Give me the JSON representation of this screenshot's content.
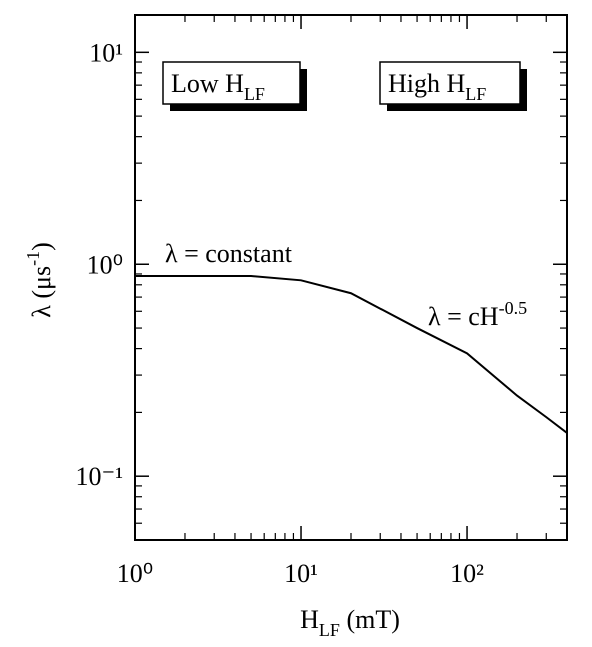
{
  "chart_data": {
    "type": "line",
    "xlabel": {
      "text": "H",
      "sub": "LF",
      "rest": " (mT)"
    },
    "ylabel": {
      "text": "λ (μs",
      "sup": "-1",
      "rest": ")"
    },
    "x": [
      1,
      5,
      10,
      20,
      50,
      100,
      200,
      300,
      400
    ],
    "values": [
      0.88,
      0.88,
      0.84,
      0.73,
      0.5,
      0.38,
      0.24,
      0.19,
      0.16
    ],
    "color": "#000000",
    "xscale": "log",
    "yscale": "log",
    "xlim": [
      1,
      400
    ],
    "ylim": [
      0.05,
      15
    ],
    "xticks": [
      {
        "value": 1,
        "label": "10⁰"
      },
      {
        "value": 10,
        "label": "10¹"
      },
      {
        "value": 100,
        "label": "10²"
      }
    ],
    "yticks": [
      {
        "value": 0.1,
        "label": "10⁻¹"
      },
      {
        "value": 1,
        "label": "10⁰"
      },
      {
        "value": 10,
        "label": "10¹"
      }
    ],
    "xminorticks": [
      2,
      3,
      4,
      5,
      6,
      7,
      8,
      9,
      20,
      30,
      40,
      50,
      60,
      70,
      80,
      90,
      200,
      300
    ],
    "yminorticks": [
      0.06,
      0.07,
      0.08,
      0.09,
      0.2,
      0.3,
      0.4,
      0.5,
      0.6,
      0.7,
      0.8,
      0.9,
      2,
      3,
      4,
      5,
      6,
      7,
      8,
      9
    ],
    "annotations": [
      {
        "text": "λ = constant"
      },
      {
        "text": "λ = cH",
        "sup": "-0.5"
      }
    ],
    "boxes": [
      {
        "text": "Low H",
        "sub": "LF"
      },
      {
        "text": "High H",
        "sub": "LF"
      }
    ]
  }
}
